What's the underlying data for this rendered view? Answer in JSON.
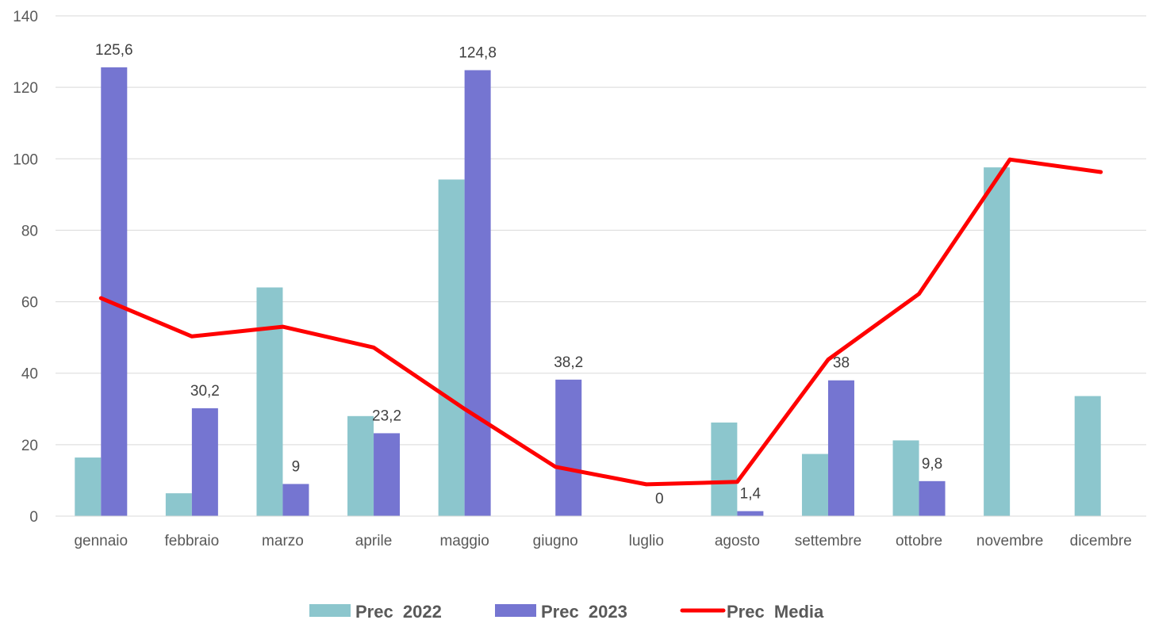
{
  "chart_data": {
    "type": "bar",
    "categories": [
      "gennaio",
      "febbraio",
      "marzo",
      "aprile",
      "maggio",
      "giugno",
      "luglio",
      "agosto",
      "settembre",
      "ottobre",
      "novembre",
      "dicembre"
    ],
    "series": [
      {
        "name": "Prec  2022",
        "type": "bar",
        "color": "#8CC6CD",
        "values": [
          16.4,
          6.4,
          64,
          28,
          94.2,
          0,
          0,
          26.2,
          17.4,
          21.2,
          97.6,
          33.6
        ],
        "labels": [
          "",
          "",
          "",
          "",
          "",
          "",
          "",
          "",
          "",
          "",
          "",
          ""
        ]
      },
      {
        "name": "Prec  2023",
        "type": "bar",
        "color": "#7575D1",
        "values": [
          125.6,
          30.2,
          9,
          23.2,
          124.8,
          38.2,
          0,
          1.4,
          38,
          9.8,
          null,
          null
        ],
        "labels": [
          "125,6",
          "30,2",
          "9",
          "23,2",
          "124,8",
          "38,2",
          "0",
          "1,4",
          "38",
          "9,8",
          "",
          ""
        ]
      },
      {
        "name": "Prec  Media",
        "type": "line",
        "color": "#FF0000",
        "values": [
          61,
          50.3,
          53,
          47.2,
          30,
          13.8,
          8.9,
          9.6,
          43.8,
          62.2,
          99.8,
          96.3
        ]
      }
    ],
    "y_ticks": [
      "0",
      "20",
      "40",
      "60",
      "80",
      "100",
      "120",
      "140"
    ],
    "ylim": [
      0,
      140
    ],
    "grid": true,
    "legend": "bottom",
    "title": "",
    "xlabel": "",
    "ylabel": ""
  }
}
